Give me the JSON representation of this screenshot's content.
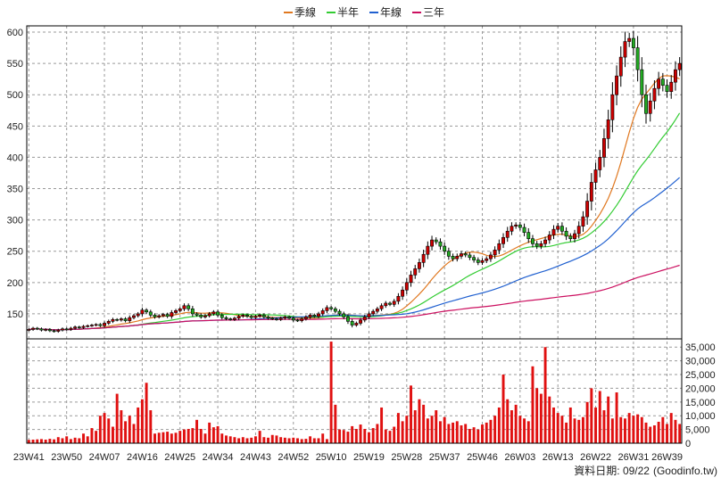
{
  "chart_data": {
    "type": "candlestick",
    "legend": {
      "placement": "top-center",
      "items": [
        {
          "name": "季線",
          "color": "#e07820"
        },
        {
          "name": "半年",
          "color": "#33cc33"
        },
        {
          "name": "年線",
          "color": "#2060d0"
        },
        {
          "name": "三年",
          "color": "#cc1060"
        }
      ]
    },
    "price_axis": {
      "ylim": [
        110,
        610
      ],
      "ticks": [
        600,
        550,
        500,
        450,
        400,
        350,
        300,
        250,
        200,
        150
      ],
      "position": "left",
      "grid": true
    },
    "volume_axis": {
      "ylim": [
        0,
        38000
      ],
      "ticks": [
        "35,000",
        "30,000",
        "25,000",
        "20,000",
        "15,000",
        "10,000",
        "5,000",
        "0"
      ],
      "tick_values": [
        35000,
        30000,
        25000,
        20000,
        15000,
        10000,
        5000,
        0
      ],
      "position": "right",
      "grid": true
    },
    "x_ticks": [
      "23W41",
      "23W50",
      "24W07",
      "24W16",
      "24W25",
      "24W34",
      "24W43",
      "24W52",
      "25W10",
      "25W19",
      "25W28",
      "25W37",
      "25W46",
      "26W03",
      "26W13",
      "26W22",
      "26W31",
      "26W39"
    ],
    "x_tick_index": [
      0,
      9,
      18,
      27,
      36,
      45,
      54,
      63,
      72,
      81,
      90,
      99,
      108,
      117,
      126,
      135,
      144,
      152
    ],
    "up_color": "#cc0000",
    "down_color": "#22aa22",
    "volume_color": "#e01010",
    "close": [
      125,
      127,
      126,
      124,
      125,
      123,
      122,
      124,
      126,
      125,
      127,
      129,
      128,
      130,
      131,
      132,
      133,
      131,
      135,
      138,
      141,
      140,
      142,
      139,
      144,
      147,
      150,
      156,
      153,
      148,
      145,
      147,
      149,
      146,
      152,
      155,
      158,
      163,
      158,
      150,
      148,
      145,
      147,
      150,
      153,
      148,
      144,
      142,
      141,
      143,
      146,
      148,
      146,
      144,
      146,
      148,
      145,
      143,
      142,
      141,
      143,
      145,
      143,
      140,
      139,
      142,
      145,
      148,
      146,
      150,
      155,
      160,
      158,
      154,
      150,
      145,
      138,
      132,
      135,
      140,
      145,
      150,
      154,
      158,
      163,
      167,
      165,
      170,
      178,
      188,
      200,
      212,
      222,
      232,
      245,
      258,
      268,
      265,
      258,
      250,
      242,
      238,
      242,
      246,
      244,
      240,
      236,
      232,
      235,
      238,
      244,
      252,
      262,
      272,
      282,
      290,
      292,
      288,
      280,
      270,
      262,
      258,
      262,
      268,
      276,
      285,
      290,
      282,
      274,
      270,
      278,
      290,
      305,
      330,
      360,
      380,
      400,
      430,
      460,
      500,
      530,
      560,
      585,
      590,
      575,
      540,
      500,
      470,
      490,
      510,
      525,
      515,
      505,
      520,
      540,
      550
    ],
    "volume": [
      1200,
      1300,
      1400,
      1500,
      1300,
      1600,
      1400,
      2200,
      1800,
      2500,
      1500,
      2000,
      1800,
      3500,
      2500,
      5500,
      4500,
      10000,
      11000,
      9000,
      6000,
      18000,
      12000,
      8000,
      10000,
      7000,
      13000,
      16000,
      22000,
      12000,
      3500,
      3800,
      4000,
      4200,
      3500,
      3800,
      4500,
      5000,
      5200,
      5500,
      8500,
      5200,
      3500,
      7500,
      5800,
      6200,
      3500,
      2800,
      2500,
      2200,
      1800,
      2200,
      1800,
      2000,
      2500,
      4500,
      2200,
      2000,
      3000,
      2800,
      2200,
      2000,
      1800,
      2000,
      1800,
      1500,
      1600,
      2500,
      1800,
      1800,
      3500,
      1500,
      37000,
      14000,
      5000,
      4800,
      4200,
      6200,
      5200,
      6800,
      5200,
      4000,
      5500,
      7000,
      13000,
      5000,
      4500,
      6000,
      11000,
      8000,
      10000,
      21000,
      12000,
      16000,
      14000,
      9000,
      10000,
      12000,
      8000,
      9500,
      7000,
      7500,
      8000,
      6500,
      7000,
      5200,
      5800,
      5000,
      6800,
      7500,
      8500,
      10000,
      13000,
      25000,
      16000,
      12000,
      14000,
      10000,
      9000,
      8000,
      28000,
      20000,
      18000,
      35000,
      17000,
      13000,
      11000,
      10000,
      7500,
      13000,
      9000,
      8500,
      9500,
      15000,
      20000,
      13000,
      19000,
      12000,
      17000,
      9000,
      18500,
      9500,
      9000,
      11000,
      10000,
      10500,
      9500,
      7500,
      6000,
      6500,
      7800,
      9500,
      7000,
      11000,
      8500,
      7000
    ]
  },
  "footer": {
    "prefix": "資料日期: ",
    "date": "09/22",
    "source": "(Goodinfo.tw)"
  }
}
